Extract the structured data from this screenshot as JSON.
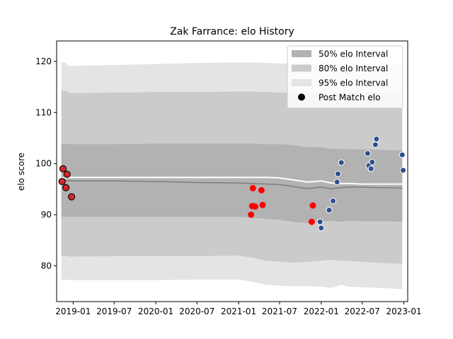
{
  "chart_data": {
    "type": "line",
    "title": "Zak Farrance: elo History",
    "xlabel": "",
    "ylabel": "elo score",
    "xlim": [
      "2018-10-20",
      "2023-01-18"
    ],
    "ylim": [
      73,
      124
    ],
    "x_ticks": [
      "2019-01",
      "2019-07",
      "2020-01",
      "2020-07",
      "2021-01",
      "2021-07",
      "2022-01",
      "2022-07",
      "2023-01"
    ],
    "y_ticks": [
      80,
      90,
      100,
      110,
      120
    ],
    "grid": false,
    "legend_position": "top-right",
    "legend": [
      {
        "label": "50% elo Interval",
        "color": "#b2b2b2"
      },
      {
        "label": "80% elo Interval",
        "color": "#cbcbcb"
      },
      {
        "label": "95% elo Interval",
        "color": "#e4e4e4"
      },
      {
        "label": "Post Match elo",
        "color": "#000000"
      }
    ],
    "colors": {
      "band_50": "#b2b2b2",
      "band_80": "#cbcbcb",
      "band_95": "#e4e4e4",
      "mean_line": "#808080",
      "median_line": "#ffffff",
      "dark_red": "#d62728",
      "red": "#ff0000",
      "blue": "#2f4f8f"
    },
    "band_x": [
      "2018-11-10",
      "2018-11-25",
      "2018-12-15",
      "2019-07-01",
      "2020-01-01",
      "2020-07-01",
      "2021-01-01",
      "2021-03-01",
      "2021-05-01",
      "2021-07-01",
      "2021-09-01",
      "2021-11-01",
      "2022-01-01",
      "2022-02-15",
      "2022-04-01",
      "2022-05-01",
      "2022-07-01",
      "2022-09-01",
      "2022-11-01",
      "2022-12-25"
    ],
    "band_95": {
      "upper": [
        119.8,
        119.8,
        119.1,
        119.3,
        119.5,
        119.7,
        119.8,
        119.8,
        119.7,
        119.6,
        119.5,
        119.5,
        119.5,
        119.5,
        119.5,
        119.5,
        119.5,
        119.4,
        119.4,
        119.4
      ],
      "lower": [
        77.3,
        77.3,
        77.2,
        77.2,
        77.2,
        77.3,
        77.3,
        76.9,
        76.3,
        76.1,
        76.0,
        76.0,
        75.9,
        75.7,
        76.3,
        75.9,
        75.8,
        75.7,
        75.6,
        75.4
      ]
    },
    "band_80": {
      "upper": [
        114.3,
        114.3,
        113.8,
        113.9,
        114.0,
        114.0,
        114.1,
        114.1,
        114.0,
        113.9,
        113.9,
        113.9,
        113.9,
        113.9,
        113.9,
        113.9,
        113.9,
        113.8,
        113.8,
        113.8
      ],
      "lower": [
        82.0,
        82.0,
        81.8,
        81.9,
        81.9,
        81.9,
        82.0,
        81.6,
        81.0,
        80.8,
        80.6,
        80.8,
        81.0,
        81.2,
        81.0,
        80.9,
        80.8,
        80.6,
        80.5,
        80.4
      ]
    },
    "band_50": {
      "upper": [
        103.9,
        103.9,
        103.8,
        103.8,
        103.9,
        103.9,
        103.9,
        103.9,
        103.8,
        103.8,
        103.6,
        103.2,
        103.2,
        102.9,
        102.9,
        102.8,
        102.8,
        102.7,
        102.6,
        102.6
      ],
      "lower": [
        89.6,
        89.6,
        89.6,
        89.6,
        89.6,
        89.6,
        89.6,
        89.4,
        89.2,
        89.0,
        88.6,
        88.4,
        88.7,
        88.8,
        88.6,
        88.8,
        88.7,
        88.7,
        88.7,
        88.6
      ]
    },
    "series": [
      {
        "values": [
          96.6,
          96.6,
          96.6,
          96.6,
          96.5,
          96.3,
          96.2,
          96.1,
          96.0,
          95.9,
          95.5,
          95.1,
          95.4,
          95.1,
          95.3,
          95.4,
          95.4,
          95.3,
          95.3,
          95.2
        ]
      },
      {
        "values": [
          97.2,
          97.2,
          97.3,
          97.3,
          97.3,
          97.3,
          97.3,
          97.3,
          97.3,
          97.2,
          96.8,
          96.4,
          96.6,
          96.2,
          96.1,
          96.1,
          96.0,
          96.0,
          96.0,
          96.0
        ]
      }
    ],
    "points": [
      {
        "date": "2018-11-13",
        "elo": 96.5,
        "color": "#d62728"
      },
      {
        "date": "2018-11-17",
        "elo": 99.0,
        "color": "#d62728"
      },
      {
        "date": "2018-11-30",
        "elo": 95.3,
        "color": "#d62728"
      },
      {
        "date": "2018-12-05",
        "elo": 97.9,
        "color": "#d62728"
      },
      {
        "date": "2018-12-25",
        "elo": 93.5,
        "color": "#d62728"
      },
      {
        "date": "2021-02-25",
        "elo": 90.0,
        "color": "#ff0000"
      },
      {
        "date": "2021-03-02",
        "elo": 91.7,
        "color": "#ff0000"
      },
      {
        "date": "2021-03-05",
        "elo": 95.2,
        "color": "#ff0000"
      },
      {
        "date": "2021-03-15",
        "elo": 91.6,
        "color": "#ff0000"
      },
      {
        "date": "2021-04-12",
        "elo": 94.8,
        "color": "#ff0000"
      },
      {
        "date": "2021-04-17",
        "elo": 91.9,
        "color": "#ff0000"
      },
      {
        "date": "2021-11-20",
        "elo": 88.6,
        "color": "#ff0000"
      },
      {
        "date": "2021-11-25",
        "elo": 91.8,
        "color": "#ff0000"
      },
      {
        "date": "2021-12-27",
        "elo": 88.6,
        "color": "#2f4f8f"
      },
      {
        "date": "2022-01-01",
        "elo": 87.4,
        "color": "#2f4f8f"
      },
      {
        "date": "2022-02-05",
        "elo": 90.9,
        "color": "#2f4f8f"
      },
      {
        "date": "2022-02-22",
        "elo": 92.7,
        "color": "#2f4f8f"
      },
      {
        "date": "2022-03-12",
        "elo": 96.4,
        "color": "#2f4f8f"
      },
      {
        "date": "2022-03-16",
        "elo": 98.0,
        "color": "#2f4f8f"
      },
      {
        "date": "2022-03-31",
        "elo": 100.2,
        "color": "#2f4f8f"
      },
      {
        "date": "2022-07-25",
        "elo": 102.0,
        "color": "#2f4f8f"
      },
      {
        "date": "2022-07-30",
        "elo": 99.6,
        "color": "#2f4f8f"
      },
      {
        "date": "2022-08-09",
        "elo": 99.0,
        "color": "#2f4f8f"
      },
      {
        "date": "2022-08-14",
        "elo": 100.3,
        "color": "#2f4f8f"
      },
      {
        "date": "2022-08-28",
        "elo": 103.7,
        "color": "#2f4f8f"
      },
      {
        "date": "2022-09-02",
        "elo": 104.8,
        "color": "#2f4f8f"
      },
      {
        "date": "2022-12-25",
        "elo": 101.7,
        "color": "#2f4f8f"
      },
      {
        "date": "2022-12-29",
        "elo": 98.7,
        "color": "#2f4f8f"
      }
    ]
  }
}
